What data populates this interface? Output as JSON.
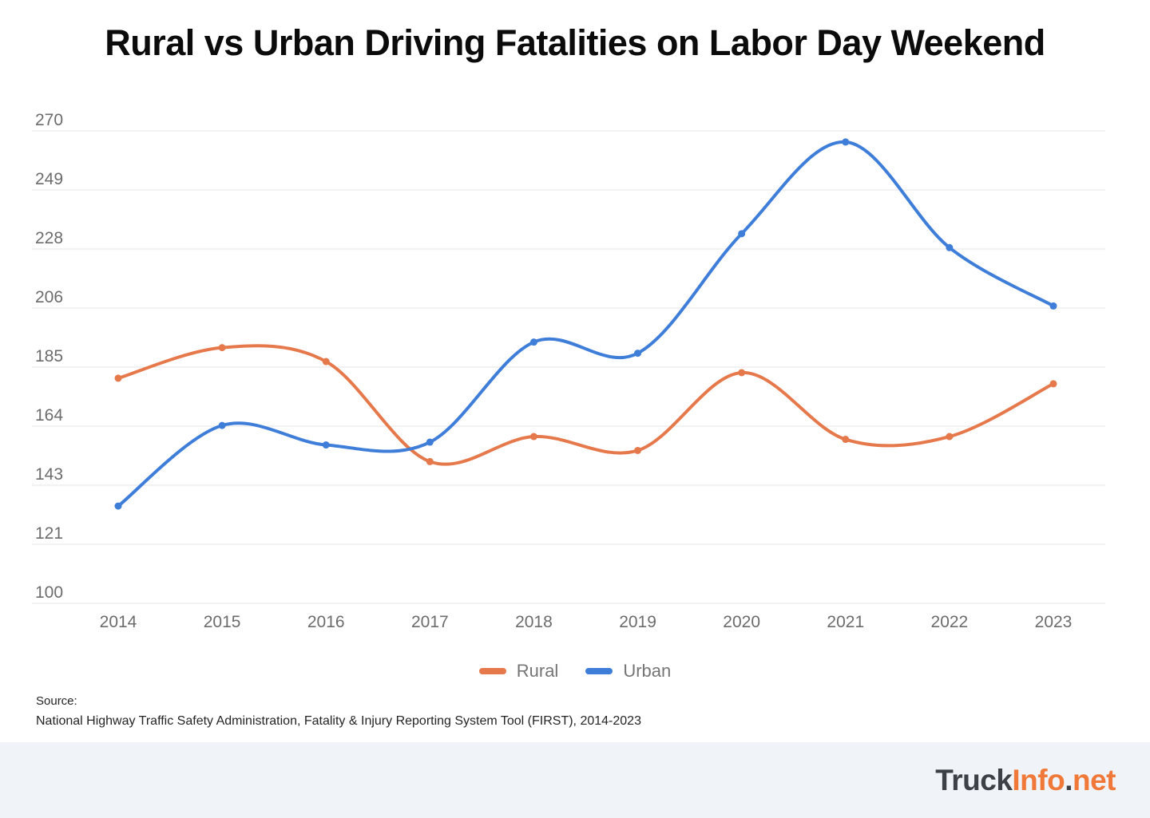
{
  "title": "Rural vs Urban Driving Fatalities on Labor Day Weekend",
  "chart_data": {
    "type": "line",
    "title": "Rural vs Urban Driving Fatalities on Labor Day Weekend",
    "categories": [
      "2014",
      "2015",
      "2016",
      "2017",
      "2018",
      "2019",
      "2020",
      "2021",
      "2022",
      "2023"
    ],
    "series": [
      {
        "name": "Rural",
        "color": "#e5794c",
        "values": [
          181,
          192,
          187,
          151,
          160,
          155,
          183,
          159,
          160,
          179
        ]
      },
      {
        "name": "Urban",
        "color": "#3e7ed9",
        "values": [
          135,
          164,
          157,
          158,
          194,
          190,
          233,
          266,
          228,
          207
        ]
      }
    ],
    "xlabel": "",
    "ylabel": "",
    "ylim": [
      100,
      270
    ],
    "y_tick_labels": [
      "100",
      "121",
      "143",
      "164",
      "185",
      "206",
      "228",
      "249",
      "270"
    ],
    "grid": "horizontal",
    "grid_color": "#e6e6e6",
    "tick_label_color": "#6c6c6c",
    "curve": "smooth",
    "legend_position": "bottom"
  },
  "source": {
    "label": "Source:",
    "text": "National Highway Traffic Safety Administration, Fatality & Injury Reporting System Tool (FIRST), 2014-2023"
  },
  "footer": {
    "logo": {
      "part1": "Truck",
      "part2": "Info",
      "dot": ".",
      "part3": "net"
    },
    "colors": {
      "dark": "#3b4147",
      "orange": "#f0793a"
    }
  }
}
